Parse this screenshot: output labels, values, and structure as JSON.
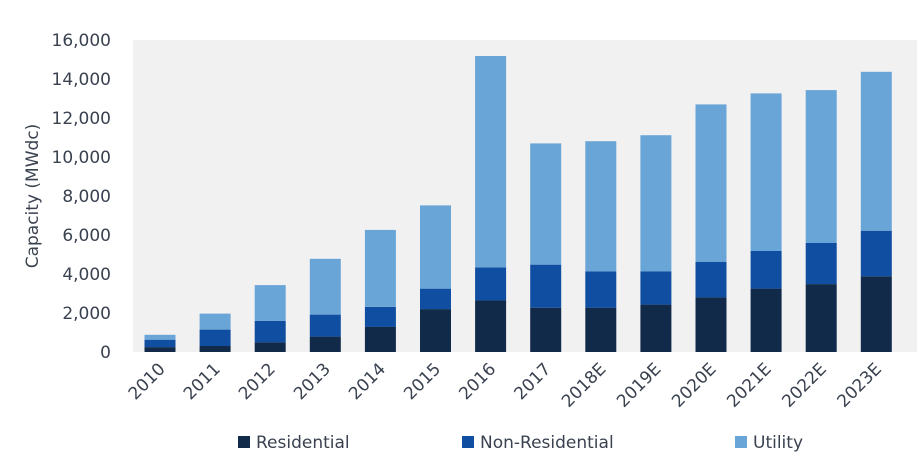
{
  "chart_data": {
    "type": "bar",
    "stacked": true,
    "title": "",
    "xlabel": "",
    "ylabel": "Capacity (MWdc)",
    "ylim": [
      0,
      16000
    ],
    "yticks": [
      "0",
      "2,000",
      "4,000",
      "6,000",
      "8,000",
      "10,000",
      "12,000",
      "14,000",
      "16,000"
    ],
    "grid": false,
    "legend_position": "bottom",
    "categories": [
      "2010",
      "2011",
      "2012",
      "2013",
      "2014",
      "2015",
      "2016",
      "2017",
      "2018E",
      "2019E",
      "2020E",
      "2021E",
      "2022E",
      "2023E"
    ],
    "series": [
      {
        "name": "Residential",
        "color": "#112a4a",
        "values": [
          250,
          310,
          490,
          790,
          1290,
          2200,
          2650,
          2270,
          2270,
          2430,
          2800,
          3250,
          3480,
          3880
        ]
      },
      {
        "name": "Non-Residential",
        "color": "#0f4ea0",
        "values": [
          380,
          840,
          1110,
          1130,
          1030,
          1050,
          1690,
          2210,
          1870,
          1700,
          1830,
          1930,
          2110,
          2340
        ]
      },
      {
        "name": "Utility",
        "color": "#6aa5d7",
        "values": [
          250,
          820,
          1830,
          2860,
          3940,
          4270,
          10840,
          6220,
          6670,
          6990,
          8070,
          8080,
          7840,
          8150
        ]
      }
    ]
  }
}
